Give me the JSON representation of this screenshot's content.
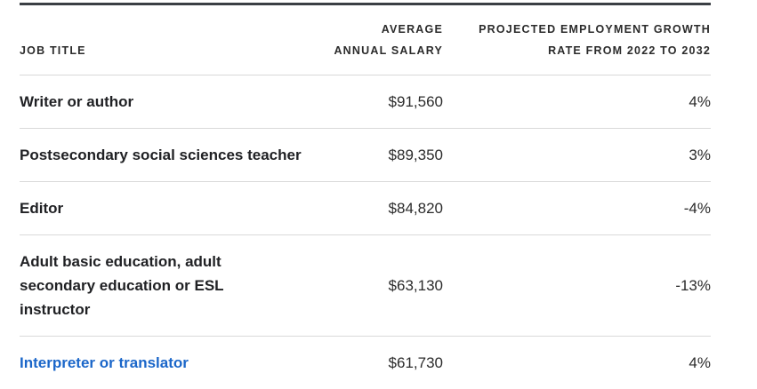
{
  "header": {
    "job_title": "JOB TITLE",
    "salary_line1": "AVERAGE",
    "salary_line2": "ANNUAL SALARY",
    "growth_line1": "PROJECTED EMPLOYMENT GROWTH",
    "growth_line2": "RATE FROM 2022 TO 2032"
  },
  "rows": [
    {
      "title": "Writer or author",
      "salary": "$91,560",
      "growth": "4%"
    },
    {
      "title": "Postsecondary social sciences teacher",
      "salary": "$89,350",
      "growth": "3%"
    },
    {
      "title": "Editor",
      "salary": "$84,820",
      "growth": "-4%"
    },
    {
      "title": "Adult basic education, adult secondary education or ESL instructor",
      "salary": "$63,130",
      "growth": "-13%"
    },
    {
      "title": "Interpreter or translator",
      "salary": "$61,730",
      "growth": "4%"
    }
  ],
  "colors": {
    "link": "#1a66c9",
    "rule": "#3a3f44",
    "divider": "#d9d9d9"
  }
}
